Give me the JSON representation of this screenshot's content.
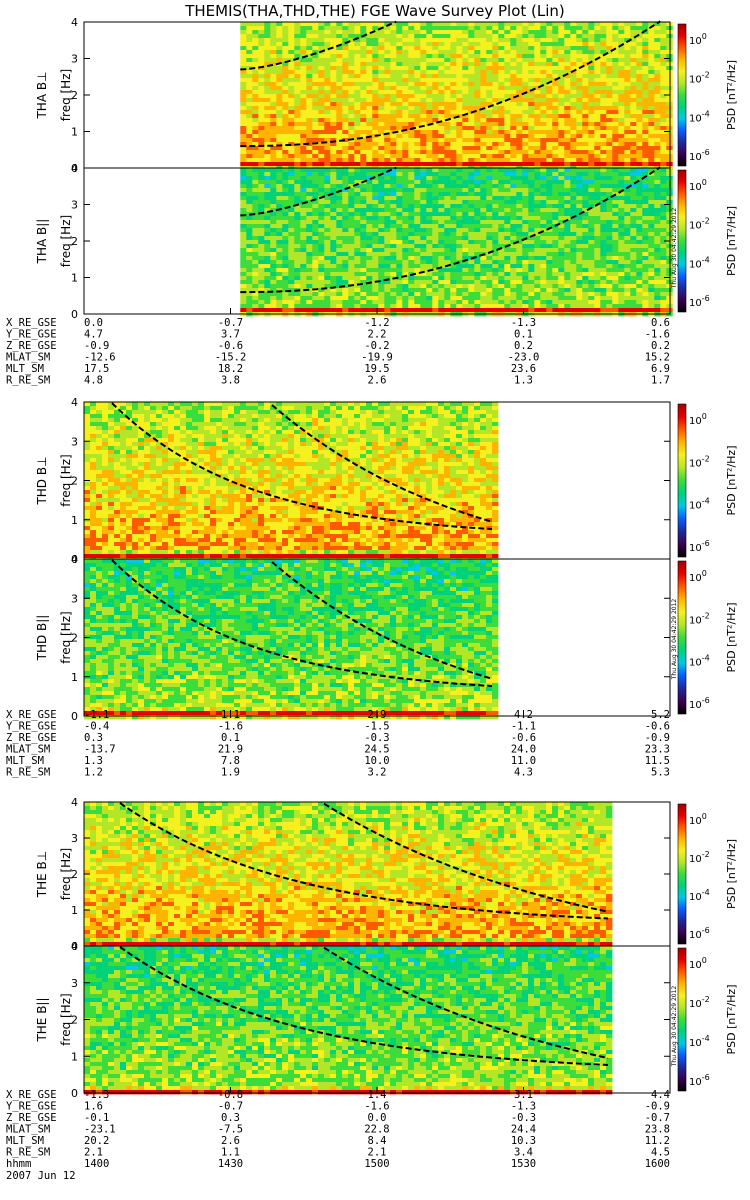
{
  "title": "THEMIS(THA,THD,THE) FGE Wave Survey Plot (Lin)",
  "colorbar": {
    "label": "PSD [nT²/Hz]",
    "ticks": [
      "10^0",
      "10^-2",
      "10^-4",
      "10^-6"
    ],
    "stamp": "Thu Aug 30 04:42:29 2012",
    "colors": [
      "#000000",
      "#3a0050",
      "#1e2a9a",
      "#0a5cff",
      "#00c8e6",
      "#00d27a",
      "#3cdc3c",
      "#b4e628",
      "#f5f01e",
      "#ffb400",
      "#ff5a00",
      "#e60000",
      "#a00000"
    ]
  },
  "axis": {
    "ylabel": "freq [Hz]",
    "yticks": [
      "0",
      "1",
      "2",
      "3",
      "4"
    ],
    "time_label": "hhmm",
    "time_ticks": [
      "1400",
      "1430",
      "1500",
      "1530",
      "1600"
    ],
    "date": "2007 Jun 12"
  },
  "ephemeris_labels": [
    "X_RE_GSE",
    "Y_RE_GSE",
    "Z_RE_GSE",
    "MLAT_SM",
    "MLT_SM",
    "R_RE_SM"
  ],
  "chart_data": [
    {
      "type": "heatmap",
      "probe": "THA",
      "panels": [
        "THA B⊥",
        "THA B||"
      ],
      "data_range_hhmm": [
        "1432",
        "1600"
      ],
      "ylim": [
        0,
        4
      ],
      "ephemeris": [
        [
          "0.0",
          "-0.7",
          "-1.2",
          "-1.3",
          "0.6"
        ],
        [
          "4.7",
          "3.7",
          "2.2",
          "0.1",
          "-1.6"
        ],
        [
          "-0.9",
          "-0.6",
          "-0.2",
          "0.2",
          "0.2"
        ],
        [
          "-12.6",
          "-15.2",
          "-19.9",
          "-23.0",
          "15.2"
        ],
        [
          "17.5",
          "18.2",
          "19.5",
          "23.6",
          "6.9"
        ],
        [
          "4.8",
          "3.8",
          "2.6",
          "1.3",
          "1.7"
        ]
      ]
    },
    {
      "type": "heatmap",
      "probe": "THD",
      "panels": [
        "THD B⊥",
        "THD B||"
      ],
      "data_range_hhmm": [
        "1400",
        "1524"
      ],
      "ylim": [
        0,
        4
      ],
      "ephemeris": [
        [
          "-1.1",
          "1.1",
          "2.9",
          "4.2",
          "5.2"
        ],
        [
          "-0.4",
          "-1.6",
          "-1.5",
          "-1.1",
          "-0.6"
        ],
        [
          "0.3",
          "0.1",
          "-0.3",
          "-0.6",
          "-0.9"
        ],
        [
          "-13.7",
          "21.9",
          "24.5",
          "24.0",
          "23.3"
        ],
        [
          "1.3",
          "7.8",
          "10.0",
          "11.0",
          "11.5"
        ],
        [
          "1.2",
          "1.9",
          "3.2",
          "4.3",
          "5.3"
        ]
      ]
    },
    {
      "type": "heatmap",
      "probe": "THE",
      "panels": [
        "THE B⊥",
        "THE B||"
      ],
      "data_range_hhmm": [
        "1400",
        "1548"
      ],
      "ylim": [
        0,
        4
      ],
      "ephemeris": [
        [
          "-1.3",
          "-0.8",
          "1.4",
          "3.1",
          "4.4"
        ],
        [
          "1.6",
          "-0.7",
          "-1.6",
          "-1.3",
          "-0.9"
        ],
        [
          "-0.1",
          "0.3",
          "0.0",
          "-0.3",
          "-0.7"
        ],
        [
          "-23.1",
          "-7.5",
          "22.8",
          "24.4",
          "23.8"
        ],
        [
          "20.2",
          "2.6",
          "8.4",
          "10.3",
          "11.2"
        ],
        [
          "2.1",
          "1.1",
          "2.1",
          "3.4",
          "4.5"
        ]
      ]
    }
  ]
}
